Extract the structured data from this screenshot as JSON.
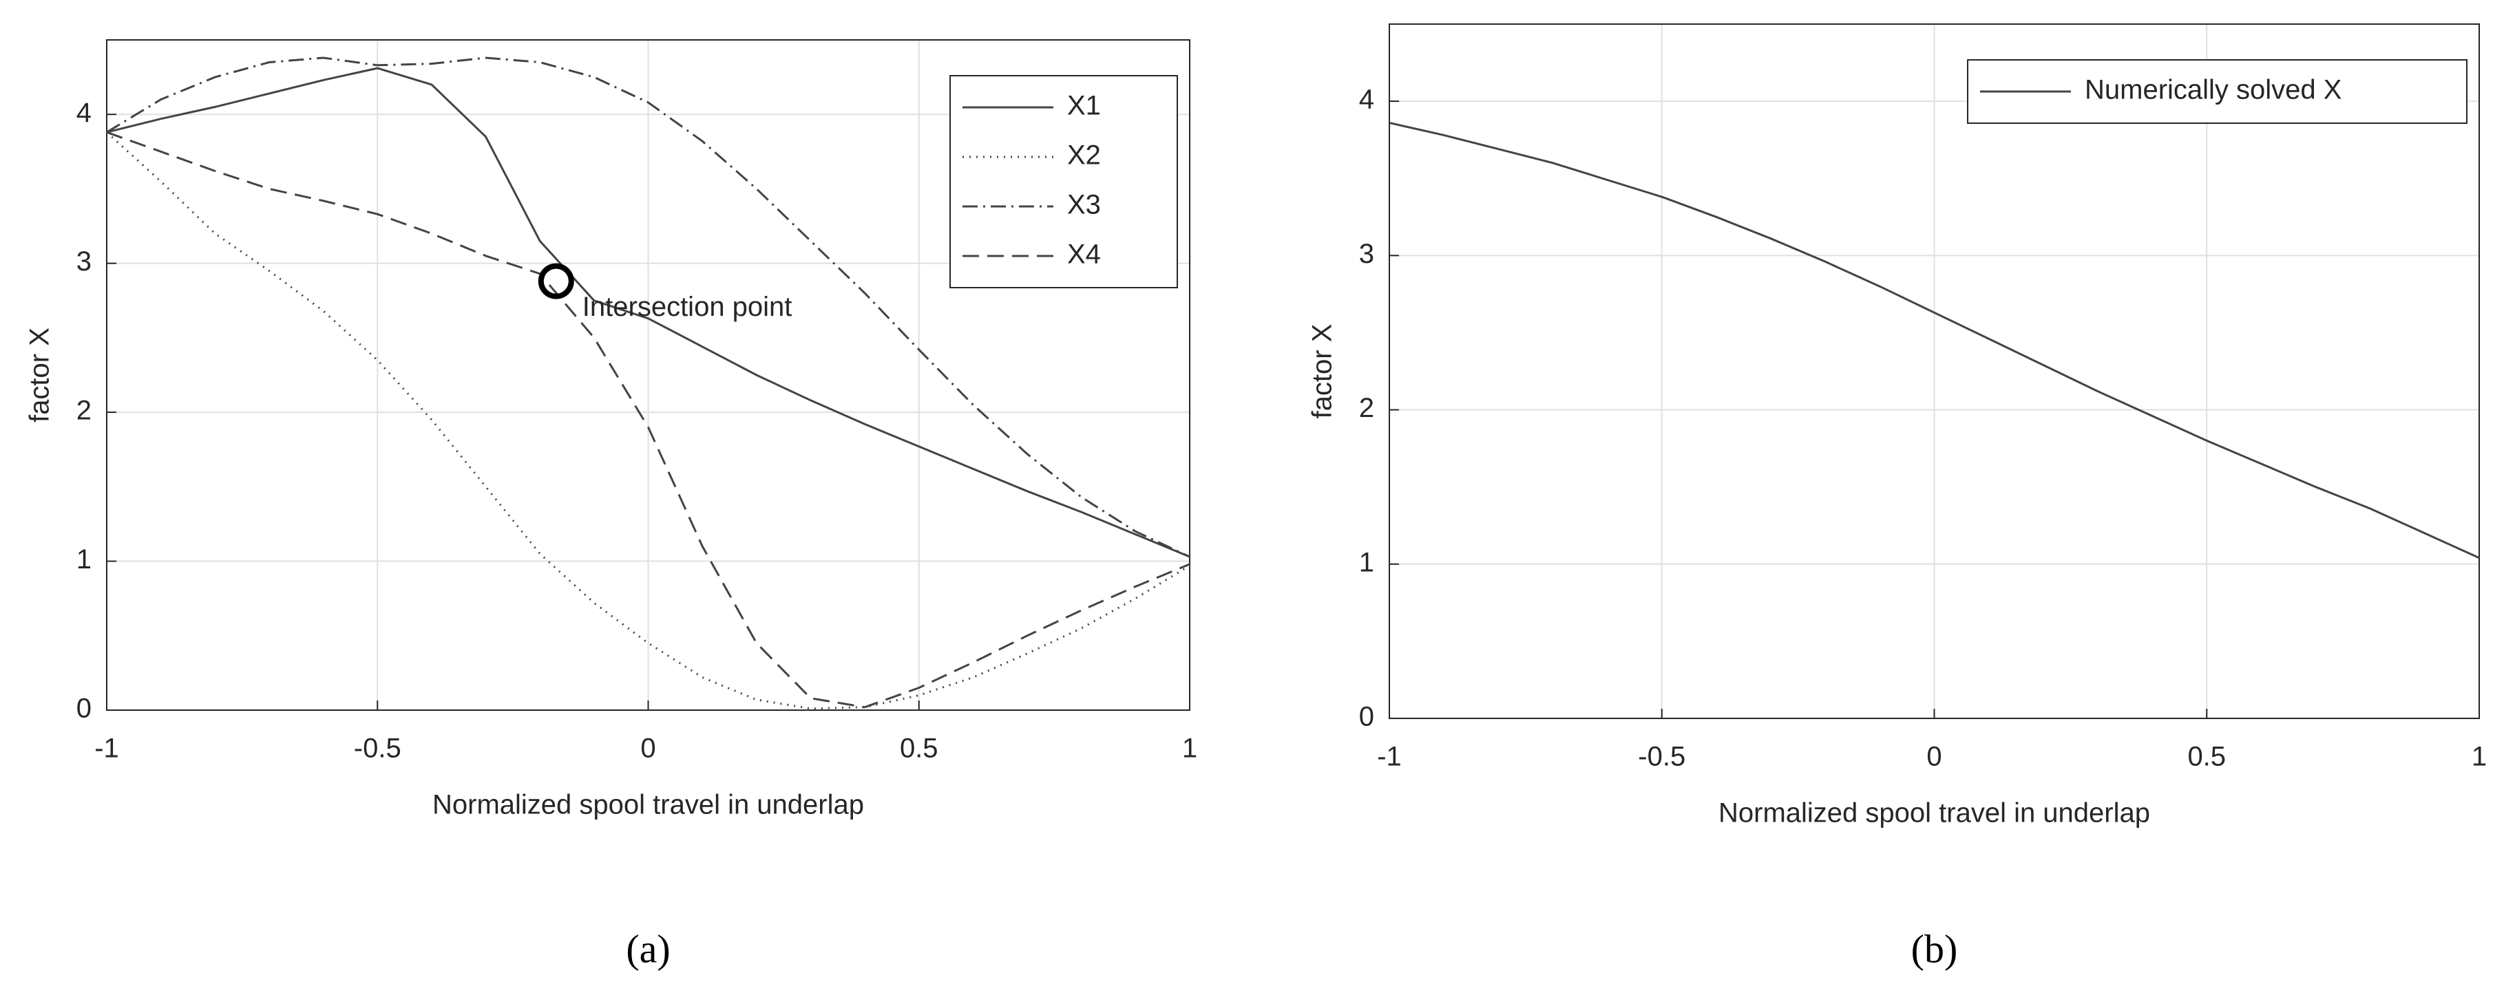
{
  "chart_data": [
    {
      "type": "line",
      "caption": "(a)",
      "xlabel": "Normalized spool travel in underlap",
      "ylabel": "factor X",
      "x": [
        -1,
        -0.9,
        -0.8,
        -0.7,
        -0.6,
        -0.5,
        -0.4,
        -0.3,
        -0.2,
        -0.1,
        0,
        0.1,
        0.2,
        0.3,
        0.4,
        0.5,
        0.6,
        0.7,
        0.8,
        0.9,
        1
      ],
      "series": [
        {
          "name": "X1",
          "color": "#444444",
          "linestyle": "solid",
          "values": [
            3.88,
            3.97,
            4.05,
            4.14,
            4.23,
            4.31,
            4.2,
            3.85,
            3.15,
            2.75,
            2.63,
            2.44,
            2.25,
            2.08,
            1.92,
            1.77,
            1.62,
            1.47,
            1.33,
            1.18,
            1.03
          ]
        },
        {
          "name": "X2",
          "color": "#444444",
          "linestyle": "dotted",
          "values": [
            3.88,
            3.55,
            3.2,
            2.95,
            2.68,
            2.35,
            1.95,
            1.5,
            1.05,
            0.72,
            0.45,
            0.22,
            0.07,
            0.01,
            0.02,
            0.1,
            0.22,
            0.38,
            0.55,
            0.75,
            0.97
          ]
        },
        {
          "name": "X3",
          "color": "#444444",
          "linestyle": "dashdot",
          "values": [
            3.88,
            4.1,
            4.25,
            4.35,
            4.38,
            4.33,
            4.34,
            4.38,
            4.35,
            4.25,
            4.08,
            3.82,
            3.5,
            3.15,
            2.8,
            2.42,
            2.05,
            1.72,
            1.43,
            1.2,
            1.03
          ]
        },
        {
          "name": "X4",
          "color": "#444444",
          "linestyle": "dashed",
          "values": [
            3.88,
            3.75,
            3.62,
            3.5,
            3.42,
            3.33,
            3.2,
            3.05,
            2.93,
            2.5,
            1.9,
            1.1,
            0.45,
            0.08,
            0.02,
            0.15,
            0.32,
            0.5,
            0.67,
            0.83,
            0.98
          ]
        }
      ],
      "annotation": {
        "text": "Intersection point",
        "x": -0.17,
        "y": 2.88
      },
      "xlim": [
        -1,
        1
      ],
      "xticks": [
        -1,
        -0.5,
        0,
        0.5,
        1
      ],
      "ylim": [
        0,
        4.5
      ],
      "yticks": [
        0,
        1,
        2,
        3,
        4
      ],
      "grid": true,
      "legend": "upper right"
    },
    {
      "type": "line",
      "caption": "(b)",
      "xlabel": "Normalized spool travel in underlap",
      "ylabel": "factor X",
      "x": [
        -1,
        -0.9,
        -0.8,
        -0.7,
        -0.6,
        -0.5,
        -0.4,
        -0.3,
        -0.2,
        -0.1,
        0,
        0.1,
        0.2,
        0.3,
        0.4,
        0.5,
        0.6,
        0.7,
        0.8,
        0.9,
        1
      ],
      "series": [
        {
          "name": "Numerically solved X",
          "color": "#444444",
          "linestyle": "solid",
          "values": [
            3.86,
            3.78,
            3.69,
            3.6,
            3.49,
            3.38,
            3.25,
            3.11,
            2.96,
            2.8,
            2.63,
            2.46,
            2.29,
            2.12,
            1.96,
            1.8,
            1.65,
            1.5,
            1.36,
            1.2,
            1.04
          ]
        }
      ],
      "xlim": [
        -1,
        1
      ],
      "xticks": [
        -1,
        -0.5,
        0,
        0.5,
        1
      ],
      "ylim": [
        0,
        4.5
      ],
      "yticks": [
        0,
        1,
        2,
        3,
        4
      ],
      "grid": true,
      "legend": "upper right"
    }
  ]
}
